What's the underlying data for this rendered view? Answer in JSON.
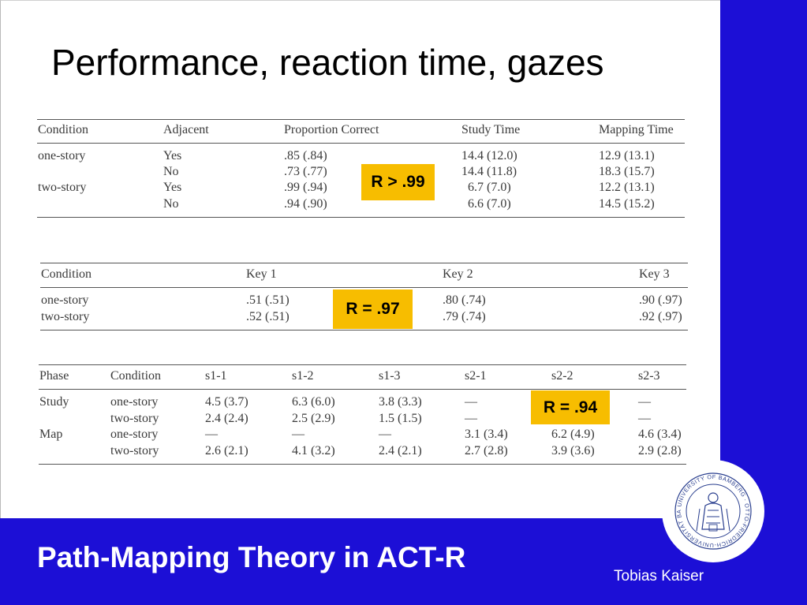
{
  "slide": {
    "title": "Performance, reaction time, gazes",
    "footer_title": "Path-Mapping Theory in ACT-R",
    "author": "Tobias Kaiser",
    "logo_text": "UNIVERSITY OF BAMBERG · OTTO-FRIEDRICH-UNIVERSITÄT BAMBERG"
  },
  "table1": {
    "headers": [
      "Condition",
      "Adjacent",
      "Proportion Correct",
      "Study Time",
      "Mapping Time"
    ],
    "rows": [
      [
        "one-story",
        "Yes",
        ".85 (.84)",
        "14.4 (12.0)",
        "12.9 (13.1)"
      ],
      [
        "",
        "No",
        ".73 (.77)",
        "14.4 (11.8)",
        "18.3 (15.7)"
      ],
      [
        "two-story",
        "Yes",
        ".99 (.94)",
        "6.7 (7.0)",
        "12.2 (13.1)"
      ],
      [
        "",
        "No",
        ".94 (.90)",
        "6.6 (7.0)",
        "14.5 (15.2)"
      ]
    ],
    "badge": "R > .99"
  },
  "table2": {
    "headers": [
      "Condition",
      "Key 1",
      "Key 2",
      "Key 3"
    ],
    "rows": [
      [
        "one-story",
        ".51 (.51)",
        ".80 (.74)",
        ".90 (.97)"
      ],
      [
        "two-story",
        ".52 (.51)",
        ".79 (.74)",
        ".92 (.97)"
      ]
    ],
    "badge": "R = .97"
  },
  "table3": {
    "headers": [
      "Phase",
      "Condition",
      "s1-1",
      "s1-2",
      "s1-3",
      "s2-1",
      "s2-2",
      "s2-3"
    ],
    "rows": [
      [
        "Study",
        "one-story",
        "4.5 (3.7)",
        "6.3 (6.0)",
        "3.8 (3.3)",
        "—",
        "",
        "—"
      ],
      [
        "",
        "two-story",
        "2.4 (2.4)",
        "2.5 (2.9)",
        "1.5 (1.5)",
        "—",
        "",
        "—"
      ],
      [
        "Map",
        "one-story",
        "—",
        "—",
        "—",
        "3.1 (3.4)",
        "6.2 (4.9)",
        "4.6 (3.4)"
      ],
      [
        "",
        "two-story",
        "2.6 (2.1)",
        "4.1 (3.2)",
        "2.4 (2.1)",
        "2.7 (2.8)",
        "3.9 (3.6)",
        "2.9 (2.8)"
      ]
    ],
    "badge": "R = .94"
  }
}
